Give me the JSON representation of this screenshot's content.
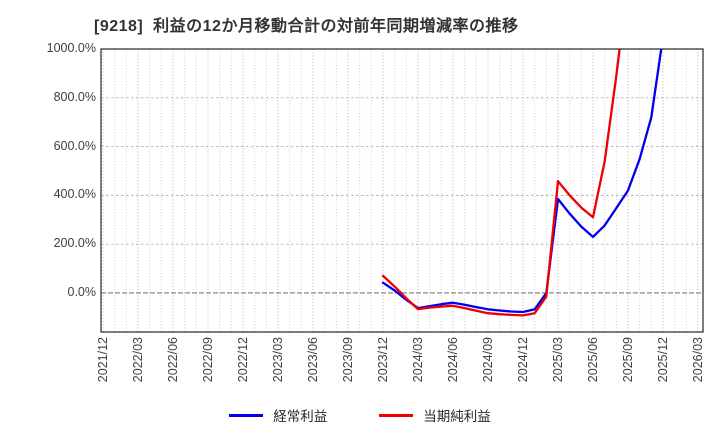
{
  "title": "[9218]  利益の12か月移動合計の対前年同期増減率の推移",
  "chart_data": {
    "type": "line",
    "title": "[9218]  利益の12か月移動合計の対前年同期増減率の推移",
    "xlabel": "",
    "ylabel": "",
    "ylim": [
      -160,
      1000
    ],
    "y_tick_values": [
      0,
      200,
      400,
      600,
      800,
      1000
    ],
    "y_tick_labels": [
      "0.0%",
      "200.0%",
      "400.0%",
      "600.0%",
      "800.0%",
      "1000.0%"
    ],
    "x_tick_labels": [
      "2021/12",
      "2022/03",
      "2022/06",
      "2022/09",
      "2022/12",
      "2023/03",
      "2023/06",
      "2023/09",
      "2023/12",
      "2024/03",
      "2024/06",
      "2024/09",
      "2024/12",
      "2025/03",
      "2025/06",
      "2025/09",
      "2025/12",
      "2026/03"
    ],
    "x_axis_note": "monthly data points; quarterly labeled ticks; monthly dotted vertical gridlines; dashed horizontal gridlines every 200%",
    "grid": true,
    "legend_position": "bottom-center",
    "months_total_span": 51,
    "series": [
      {
        "name": "経常利益",
        "color": "#0000ee",
        "start_month": "2023/12",
        "start_month_index": 24,
        "x_monthly": [
          "2023/12",
          "2024/01",
          "2024/02",
          "2024/03",
          "2024/04",
          "2024/05",
          "2024/06",
          "2024/07",
          "2024/08",
          "2024/09",
          "2024/10",
          "2024/11",
          "2024/12",
          "2025/01",
          "2025/02",
          "2025/03",
          "2025/04",
          "2025/05",
          "2025/06",
          "2025/07",
          "2025/08",
          "2025/09",
          "2025/10",
          "2025/11",
          "2025/12"
        ],
        "values": [
          42,
          10,
          -28,
          -62,
          -54,
          -46,
          -40,
          -48,
          -58,
          -67,
          -72,
          -76,
          -78,
          -67,
          0,
          385,
          325,
          272,
          230,
          277,
          348,
          420,
          550,
          720,
          1050
        ]
      },
      {
        "name": "当期純利益",
        "color": "#ee0000",
        "start_month": "2023/12",
        "start_month_index": 24,
        "x_monthly": [
          "2023/12",
          "2024/01",
          "2024/02",
          "2024/03",
          "2024/04",
          "2024/05",
          "2024/06",
          "2024/07",
          "2024/08",
          "2024/09",
          "2024/10",
          "2024/11",
          "2024/12",
          "2025/01",
          "2025/02",
          "2025/03",
          "2025/04",
          "2025/05",
          "2025/06",
          "2025/07",
          "2025/08",
          "2025/09"
        ],
        "values": [
          70,
          26,
          -22,
          -66,
          -60,
          -56,
          -52,
          -62,
          -73,
          -83,
          -87,
          -90,
          -92,
          -83,
          -15,
          458,
          400,
          350,
          310,
          540,
          890,
          1280
        ]
      }
    ],
    "annotations": {
      "peak_2025_03": {
        "経常利益": 385,
        "当期純利益": 458
      },
      "trough_2025_06": {
        "経常利益": 230,
        "当期純利益": 310
      },
      "lines_exit_top": {
        "当期純利益": "between 2025/06 and 2025/09",
        "経常利益": "at ~2025/12"
      }
    }
  },
  "legend": {
    "items": [
      {
        "label": "経常利益",
        "color": "#0000ee"
      },
      {
        "label": "当期純利益",
        "color": "#ee0000"
      }
    ]
  },
  "colors": {
    "background": "#ffffff",
    "frame": "#262626",
    "grid_major": "#b0b0b0",
    "grid_minor": "#c8c8c8",
    "zero_line": "#7a7a7a",
    "tick_label": "#404040",
    "title": "#333333"
  }
}
